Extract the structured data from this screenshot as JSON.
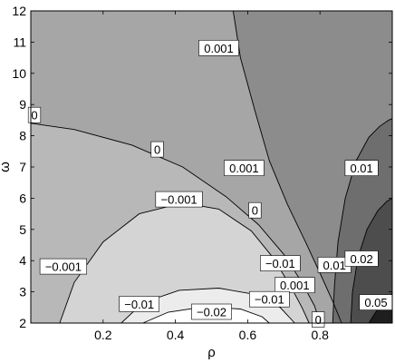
{
  "chart_data": {
    "type": "contour",
    "xlabel": "ρ",
    "ylabel": "ω",
    "xlim": [
      0,
      1
    ],
    "ylim": [
      2,
      12
    ],
    "x_ticks": [
      "0.2",
      "0.4",
      "0.6",
      "0.8"
    ],
    "y_ticks": [
      "2",
      "3",
      "4",
      "5",
      "6",
      "7",
      "8",
      "9",
      "10",
      "11",
      "12"
    ],
    "levels": [
      -0.02,
      -0.01,
      -0.001,
      0,
      0.001,
      0.01,
      0.02,
      0.05
    ],
    "fill_colors": {
      "below_-0.02": "#ffffff",
      "-0.02_to_-0.01": "#ececec",
      "-0.01_to_-0.001": "#d4d4d4",
      "-0.001_to_0": "#b8b8b8",
      "0_to_0.001": "#a6a6a6",
      "0.001_to_0.01": "#8c8c8c",
      "0.01_to_0.02": "#6e6e6e",
      "0.02_to_0.05": "#4d4d4d",
      "above_0.05": "#1e1e1e"
    },
    "contour_labels": [
      {
        "text": "0.001",
        "x": 0.52,
        "y": 10.8
      },
      {
        "text": "0",
        "x": 0.01,
        "y": 8.65
      },
      {
        "text": "0",
        "x": 0.35,
        "y": 7.55
      },
      {
        "text": "0.001",
        "x": 0.59,
        "y": 6.95
      },
      {
        "text": "0",
        "x": 0.62,
        "y": 5.6
      },
      {
        "text": "−0.001",
        "x": 0.41,
        "y": 5.95
      },
      {
        "text": "−0.001",
        "x": 0.09,
        "y": 3.8
      },
      {
        "text": "−0.01",
        "x": 0.69,
        "y": 3.9
      },
      {
        "text": "0.001",
        "x": 0.73,
        "y": 3.2
      },
      {
        "text": "−0.01",
        "x": 0.3,
        "y": 2.6
      },
      {
        "text": "−0.01",
        "x": 0.66,
        "y": 2.75
      },
      {
        "text": "−0.02",
        "x": 0.5,
        "y": 2.35
      },
      {
        "text": "0",
        "x": 0.795,
        "y": 2.1
      },
      {
        "text": "0.01",
        "x": 0.84,
        "y": 3.85
      },
      {
        "text": "0.01",
        "x": 0.915,
        "y": 6.95
      },
      {
        "text": "0.02",
        "x": 0.915,
        "y": 4.05
      },
      {
        "text": "0.05",
        "x": 0.955,
        "y": 2.65
      }
    ]
  }
}
